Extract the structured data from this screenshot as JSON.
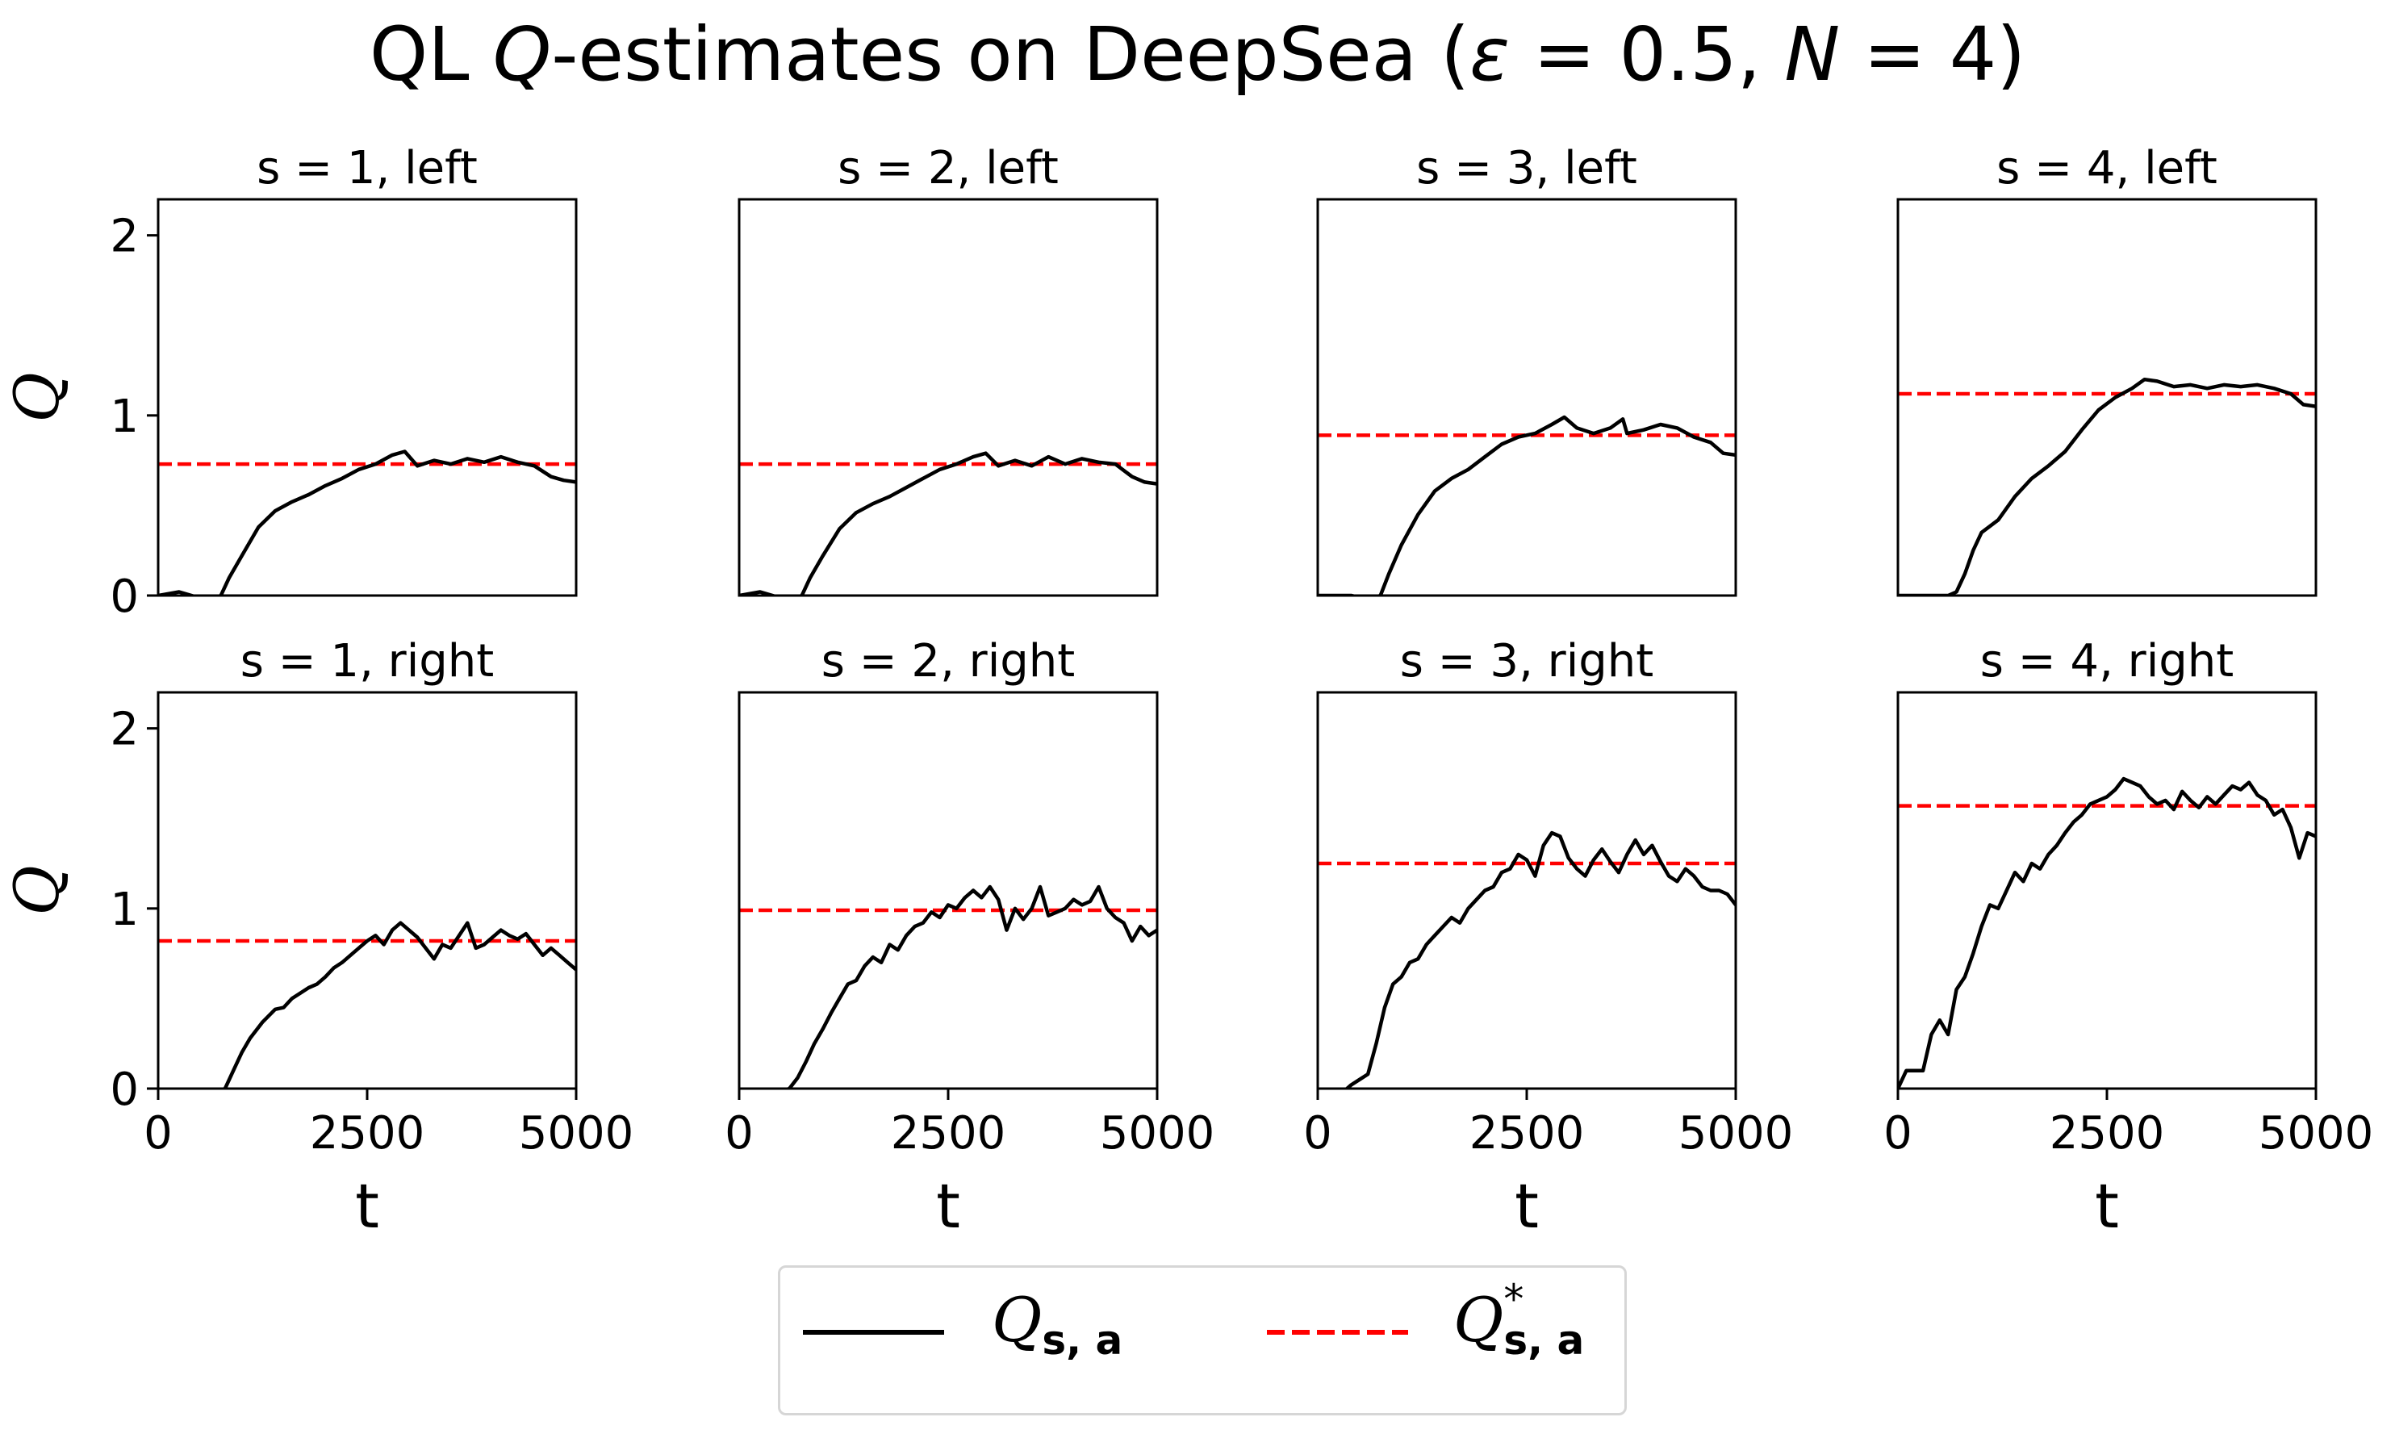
{
  "figure": {
    "title_prefix": "QL ",
    "title_q": "Q",
    "title_mid": "-estimates on DeepSea (",
    "title_eps": "ε",
    "title_eps_val": " = 0.5, ",
    "title_n": "N",
    "title_n_val": " = 4)"
  },
  "legend": {
    "items": [
      {
        "base": "Q",
        "sub": "s, a",
        "sup": "",
        "color": "#000000",
        "dash": "solid"
      },
      {
        "base": "Q",
        "sub": "s, a",
        "sup": "*",
        "color": "#ff0000",
        "dash": "dashed"
      }
    ]
  },
  "chart_data": [
    {
      "type": "line",
      "title": "s = 1, left",
      "xlabel": "",
      "ylabel": "Q",
      "xlim": [
        0,
        5000
      ],
      "ylim": [
        0,
        2.2
      ],
      "xticks": [],
      "yticks": [
        0,
        1,
        2
      ],
      "optimal": 0.73,
      "series": [
        {
          "x": [
            0,
            250,
            400,
            600,
            750,
            850,
            1000,
            1200,
            1400,
            1600,
            1800,
            2000,
            2200,
            2400,
            2600,
            2800,
            2950,
            3100,
            3300,
            3500,
            3700,
            3900,
            4100,
            4300,
            4500,
            4700,
            4850,
            5000
          ],
          "y": [
            0,
            0.02,
            0,
            -0.03,
            0,
            0.1,
            0.22,
            0.38,
            0.47,
            0.52,
            0.56,
            0.61,
            0.65,
            0.7,
            0.73,
            0.78,
            0.8,
            0.72,
            0.75,
            0.73,
            0.76,
            0.74,
            0.77,
            0.74,
            0.72,
            0.66,
            0.64,
            0.63
          ]
        }
      ]
    },
    {
      "type": "line",
      "title": "s = 2, left",
      "xlabel": "",
      "ylabel": "",
      "xlim": [
        0,
        5000
      ],
      "ylim": [
        0,
        2.2
      ],
      "xticks": [],
      "yticks": [],
      "optimal": 0.73,
      "series": [
        {
          "x": [
            0,
            250,
            400,
            600,
            750,
            850,
            1000,
            1200,
            1400,
            1600,
            1800,
            2000,
            2200,
            2400,
            2600,
            2800,
            2950,
            3100,
            3300,
            3500,
            3700,
            3900,
            4100,
            4300,
            4500,
            4700,
            4850,
            5000
          ],
          "y": [
            0,
            0.02,
            0,
            -0.03,
            0,
            0.1,
            0.22,
            0.37,
            0.46,
            0.51,
            0.55,
            0.6,
            0.65,
            0.7,
            0.73,
            0.77,
            0.79,
            0.72,
            0.75,
            0.72,
            0.77,
            0.73,
            0.76,
            0.74,
            0.73,
            0.66,
            0.63,
            0.62
          ]
        }
      ]
    },
    {
      "type": "line",
      "title": "s = 3, left",
      "xlabel": "",
      "ylabel": "",
      "xlim": [
        0,
        5000
      ],
      "ylim": [
        0,
        2.2
      ],
      "xticks": [],
      "yticks": [],
      "optimal": 0.89,
      "series": [
        {
          "x": [
            0,
            200,
            400,
            600,
            750,
            850,
            1000,
            1200,
            1400,
            1600,
            1800,
            2000,
            2200,
            2400,
            2600,
            2800,
            2950,
            3100,
            3300,
            3500,
            3650,
            3700,
            3900,
            4100,
            4300,
            4500,
            4700,
            4850,
            5000
          ],
          "y": [
            0,
            0,
            0,
            -0.02,
            0,
            0.12,
            0.28,
            0.45,
            0.58,
            0.65,
            0.7,
            0.77,
            0.84,
            0.88,
            0.9,
            0.95,
            0.99,
            0.93,
            0.9,
            0.93,
            0.98,
            0.9,
            0.92,
            0.95,
            0.93,
            0.88,
            0.85,
            0.79,
            0.78
          ]
        }
      ]
    },
    {
      "type": "line",
      "title": "s = 4, left",
      "xlabel": "",
      "ylabel": "",
      "xlim": [
        0,
        5000
      ],
      "ylim": [
        0,
        2.2
      ],
      "xticks": [],
      "yticks": [],
      "optimal": 1.12,
      "series": [
        {
          "x": [
            0,
            200,
            400,
            600,
            700,
            800,
            900,
            1000,
            1200,
            1400,
            1600,
            1800,
            2000,
            2200,
            2400,
            2600,
            2800,
            2950,
            3100,
            3300,
            3500,
            3700,
            3900,
            4100,
            4300,
            4500,
            4700,
            4850,
            5000
          ],
          "y": [
            0,
            0,
            0,
            0,
            0.02,
            0.12,
            0.25,
            0.35,
            0.42,
            0.55,
            0.65,
            0.72,
            0.8,
            0.92,
            1.03,
            1.1,
            1.15,
            1.2,
            1.19,
            1.16,
            1.17,
            1.15,
            1.17,
            1.16,
            1.17,
            1.15,
            1.12,
            1.06,
            1.05
          ]
        }
      ]
    },
    {
      "type": "line",
      "title": "s = 1, right",
      "xlabel": "t",
      "ylabel": "Q",
      "xlim": [
        0,
        5000
      ],
      "ylim": [
        0,
        2.2
      ],
      "xticks": [
        0,
        2500,
        5000
      ],
      "yticks": [
        0,
        1,
        2
      ],
      "optimal": 0.82,
      "series": [
        {
          "x": [
            0,
            300,
            600,
            700,
            800,
            900,
            1000,
            1100,
            1250,
            1400,
            1500,
            1600,
            1700,
            1800,
            1900,
            2000,
            2100,
            2200,
            2300,
            2400,
            2500,
            2600,
            2700,
            2800,
            2900,
            3000,
            3100,
            3200,
            3300,
            3400,
            3500,
            3600,
            3700,
            3800,
            3900,
            4000,
            4100,
            4200,
            4300,
            4400,
            4500,
            4600,
            4700,
            4800,
            4900,
            5000
          ],
          "y": [
            -0.05,
            -0.03,
            -0.05,
            -0.02,
            0,
            0.1,
            0.2,
            0.28,
            0.37,
            0.44,
            0.45,
            0.5,
            0.53,
            0.56,
            0.58,
            0.62,
            0.67,
            0.7,
            0.74,
            0.78,
            0.82,
            0.85,
            0.8,
            0.88,
            0.92,
            0.88,
            0.84,
            0.78,
            0.72,
            0.8,
            0.78,
            0.85,
            0.92,
            0.78,
            0.8,
            0.84,
            0.88,
            0.85,
            0.83,
            0.86,
            0.8,
            0.74,
            0.78,
            0.74,
            0.7,
            0.66
          ]
        }
      ]
    },
    {
      "type": "line",
      "title": "s = 2, right",
      "xlabel": "t",
      "ylabel": "",
      "xlim": [
        0,
        5000
      ],
      "ylim": [
        0,
        2.2
      ],
      "xticks": [
        0,
        2500,
        5000
      ],
      "yticks": [],
      "optimal": 0.99,
      "series": [
        {
          "x": [
            0,
            400,
            600,
            700,
            800,
            900,
            1000,
            1100,
            1200,
            1300,
            1400,
            1500,
            1600,
            1700,
            1800,
            1900,
            2000,
            2100,
            2200,
            2300,
            2400,
            2500,
            2600,
            2700,
            2800,
            2900,
            3000,
            3100,
            3200,
            3300,
            3400,
            3500,
            3600,
            3700,
            3800,
            3900,
            4000,
            4100,
            4200,
            4300,
            4400,
            4500,
            4600,
            4700,
            4800,
            4900,
            5000
          ],
          "y": [
            -0.05,
            -0.03,
            0,
            0.06,
            0.15,
            0.25,
            0.33,
            0.42,
            0.5,
            0.58,
            0.6,
            0.68,
            0.73,
            0.7,
            0.8,
            0.77,
            0.85,
            0.9,
            0.92,
            0.98,
            0.95,
            1.02,
            1.0,
            1.06,
            1.1,
            1.06,
            1.12,
            1.05,
            0.88,
            1.0,
            0.94,
            1.0,
            1.12,
            0.96,
            0.98,
            1.0,
            1.05,
            1.02,
            1.04,
            1.12,
            1.0,
            0.95,
            0.92,
            0.82,
            0.9,
            0.85,
            0.88
          ]
        }
      ]
    },
    {
      "type": "line",
      "title": "s = 3, right",
      "xlabel": "t",
      "ylabel": "",
      "xlim": [
        0,
        5000
      ],
      "ylim": [
        0,
        2.2
      ],
      "xticks": [
        0,
        2500,
        5000
      ],
      "yticks": [],
      "optimal": 1.25,
      "series": [
        {
          "x": [
            0,
            300,
            400,
            500,
            600,
            700,
            800,
            900,
            1000,
            1100,
            1200,
            1300,
            1400,
            1500,
            1600,
            1700,
            1800,
            1900,
            2000,
            2100,
            2200,
            2300,
            2400,
            2500,
            2600,
            2700,
            2800,
            2900,
            3000,
            3100,
            3200,
            3300,
            3400,
            3500,
            3600,
            3700,
            3800,
            3900,
            4000,
            4100,
            4200,
            4300,
            4400,
            4500,
            4600,
            4700,
            4800,
            4900,
            5000
          ],
          "y": [
            -0.05,
            -0.02,
            0.02,
            0.05,
            0.08,
            0.25,
            0.45,
            0.58,
            0.62,
            0.7,
            0.72,
            0.8,
            0.85,
            0.9,
            0.95,
            0.92,
            1.0,
            1.05,
            1.1,
            1.12,
            1.2,
            1.22,
            1.3,
            1.27,
            1.18,
            1.35,
            1.42,
            1.4,
            1.28,
            1.22,
            1.18,
            1.27,
            1.33,
            1.26,
            1.2,
            1.3,
            1.38,
            1.3,
            1.35,
            1.26,
            1.18,
            1.15,
            1.22,
            1.18,
            1.12,
            1.1,
            1.1,
            1.08,
            1.02
          ]
        }
      ]
    },
    {
      "type": "line",
      "title": "s = 4, right",
      "xlabel": "t",
      "ylabel": "",
      "xlim": [
        0,
        5000
      ],
      "ylim": [
        0,
        2.2
      ],
      "xticks": [
        0,
        2500,
        5000
      ],
      "yticks": [],
      "optimal": 1.57,
      "series": [
        {
          "x": [
            0,
            100,
            200,
            300,
            400,
            500,
            600,
            700,
            800,
            900,
            1000,
            1100,
            1200,
            1300,
            1400,
            1500,
            1600,
            1700,
            1800,
            1900,
            2000,
            2100,
            2200,
            2300,
            2400,
            2500,
            2600,
            2700,
            2800,
            2900,
            3000,
            3100,
            3200,
            3300,
            3400,
            3500,
            3600,
            3700,
            3800,
            3900,
            4000,
            4100,
            4200,
            4300,
            4400,
            4500,
            4600,
            4700,
            4800,
            4900,
            5000
          ],
          "y": [
            0,
            0.1,
            0.1,
            0.1,
            0.3,
            0.38,
            0.3,
            0.55,
            0.62,
            0.75,
            0.9,
            1.02,
            1.0,
            1.1,
            1.2,
            1.15,
            1.25,
            1.22,
            1.3,
            1.35,
            1.42,
            1.48,
            1.52,
            1.58,
            1.6,
            1.62,
            1.66,
            1.72,
            1.7,
            1.68,
            1.62,
            1.58,
            1.6,
            1.55,
            1.65,
            1.6,
            1.56,
            1.62,
            1.58,
            1.63,
            1.68,
            1.66,
            1.7,
            1.63,
            1.6,
            1.52,
            1.55,
            1.45,
            1.28,
            1.42,
            1.4
          ]
        }
      ]
    }
  ]
}
